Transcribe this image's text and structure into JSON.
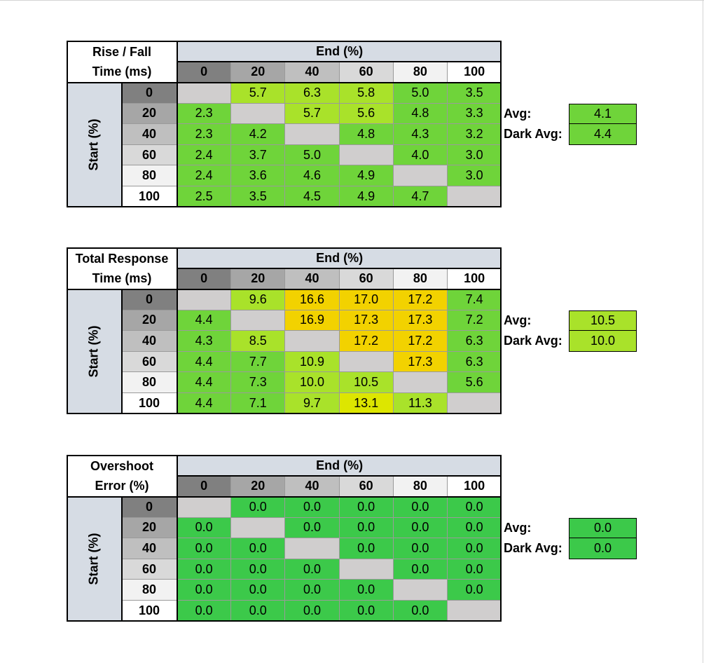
{
  "chart_data": [
    {
      "type": "table",
      "title_lines": [
        "Rise / Fall",
        "Time (ms)"
      ],
      "col_header": "End (%)",
      "row_header": "Start (%)",
      "columns": [
        "0",
        "20",
        "40",
        "60",
        "80",
        "100"
      ],
      "rows": [
        "0",
        "20",
        "40",
        "60",
        "80",
        "100"
      ],
      "values": [
        [
          "",
          "5.7",
          "6.3",
          "5.8",
          "5.0",
          "3.5"
        ],
        [
          "2.3",
          "",
          "5.7",
          "5.6",
          "4.8",
          "3.3"
        ],
        [
          "2.3",
          "4.2",
          "",
          "4.8",
          "4.3",
          "3.2"
        ],
        [
          "2.4",
          "3.7",
          "5.0",
          "",
          "4.0",
          "3.0"
        ],
        [
          "2.4",
          "3.6",
          "4.6",
          "4.9",
          "",
          "3.0"
        ],
        [
          "2.5",
          "3.5",
          "4.5",
          "4.9",
          "4.7",
          ""
        ]
      ],
      "avg_label": "Avg:",
      "avg": "4.1",
      "dark_avg_label": "Dark Avg:",
      "dark_avg": "4.4"
    },
    {
      "type": "table",
      "title_lines": [
        "Total Response",
        "Time (ms)"
      ],
      "col_header": "End (%)",
      "row_header": "Start (%)",
      "columns": [
        "0",
        "20",
        "40",
        "60",
        "80",
        "100"
      ],
      "rows": [
        "0",
        "20",
        "40",
        "60",
        "80",
        "100"
      ],
      "values": [
        [
          "",
          "9.6",
          "16.6",
          "17.0",
          "17.2",
          "7.4"
        ],
        [
          "4.4",
          "",
          "16.9",
          "17.3",
          "17.3",
          "7.2"
        ],
        [
          "4.3",
          "8.5",
          "",
          "17.2",
          "17.2",
          "6.3"
        ],
        [
          "4.4",
          "7.7",
          "10.9",
          "",
          "17.3",
          "6.3"
        ],
        [
          "4.4",
          "7.3",
          "10.0",
          "10.5",
          "",
          "5.6"
        ],
        [
          "4.4",
          "7.1",
          "9.7",
          "13.1",
          "11.3",
          ""
        ]
      ],
      "avg_label": "Avg:",
      "avg": "10.5",
      "dark_avg_label": "Dark Avg:",
      "dark_avg": "10.0"
    },
    {
      "type": "table",
      "title_lines": [
        "Overshoot",
        "Error (%)"
      ],
      "col_header": "End (%)",
      "row_header": "Start (%)",
      "columns": [
        "0",
        "20",
        "40",
        "60",
        "80",
        "100"
      ],
      "rows": [
        "0",
        "20",
        "40",
        "60",
        "80",
        "100"
      ],
      "values": [
        [
          "",
          "0.0",
          "0.0",
          "0.0",
          "0.0",
          "0.0"
        ],
        [
          "0.0",
          "",
          "0.0",
          "0.0",
          "0.0",
          "0.0"
        ],
        [
          "0.0",
          "0.0",
          "",
          "0.0",
          "0.0",
          "0.0"
        ],
        [
          "0.0",
          "0.0",
          "0.0",
          "",
          "0.0",
          "0.0"
        ],
        [
          "0.0",
          "0.0",
          "0.0",
          "0.0",
          "",
          "0.0"
        ],
        [
          "0.0",
          "0.0",
          "0.0",
          "0.0",
          "0.0",
          ""
        ]
      ],
      "avg_label": "Avg:",
      "avg": "0.0",
      "dark_avg_label": "Dark Avg:",
      "dark_avg": "0.0"
    }
  ],
  "colors": {
    "header_band": "#d6dce4",
    "diagonal_empty": "#d0cece",
    "shade_levels": [
      "#808080",
      "#a6a6a6",
      "#bfbfbf",
      "#d9d9d9",
      "#f2f2f2",
      "#ffffff"
    ],
    "value_scale": {
      "green_dark": "#3cc94a",
      "green": "#6fd43a",
      "yellow_green": "#a9e22a",
      "lime": "#dde600",
      "yellow": "#f2d200"
    }
  }
}
